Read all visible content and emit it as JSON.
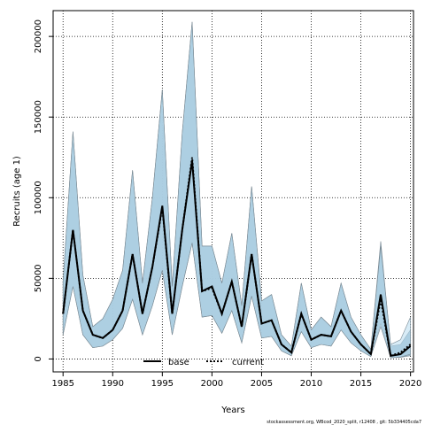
{
  "chart_data": {
    "type": "area",
    "title": "",
    "xlabel": "Years",
    "ylabel": "Recruits (age 1)",
    "xlim": [
      1984,
      2020.3
    ],
    "ylim": [
      -8000,
      216000
    ],
    "x_ticks": [
      1985,
      1990,
      1995,
      2000,
      2005,
      2010,
      2015,
      2020
    ],
    "y_ticks": [
      0,
      50000,
      100000,
      150000,
      200000
    ],
    "grid": true,
    "legend_position": "bottom-center",
    "footer": "stockassessment.org,  WBcod_2020_split,  r12408 ,  git: 5b334405cda7",
    "x": [
      1985,
      1986,
      1987,
      1988,
      1989,
      1990,
      1991,
      1992,
      1993,
      1994,
      1995,
      1996,
      1997,
      1998,
      1999,
      2000,
      2001,
      2002,
      2003,
      2004,
      2005,
      2006,
      2007,
      2008,
      2009,
      2010,
      2011,
      2012,
      2013,
      2014,
      2015,
      2016,
      2017,
      2018,
      2019,
      2020
    ],
    "series": [
      {
        "name": "base",
        "color": "#000000",
        "line_style": "solid",
        "values": [
          28000,
          80000,
          30000,
          15000,
          13000,
          18000,
          30000,
          65000,
          28000,
          57000,
          95000,
          28000,
          80000,
          123000,
          42000,
          45000,
          28000,
          48000,
          20000,
          65000,
          22000,
          24000,
          9000,
          4000,
          28000,
          12000,
          15000,
          14000,
          30000,
          17000,
          9000,
          3000,
          40000,
          2000,
          3000,
          8000
        ],
        "band_low": [
          15000,
          45000,
          15000,
          7000,
          8000,
          12000,
          19000,
          37000,
          15000,
          33000,
          55000,
          15000,
          45000,
          72000,
          26000,
          27000,
          16000,
          30000,
          10000,
          39000,
          13000,
          14000,
          5000,
          2000,
          17000,
          7000,
          9000,
          8000,
          18000,
          10000,
          5000,
          1500,
          22000,
          800,
          1000,
          2000
        ],
        "band_high": [
          48000,
          141000,
          52000,
          20000,
          25000,
          37000,
          55000,
          117000,
          47000,
          100000,
          167000,
          45000,
          140000,
          209000,
          70000,
          70000,
          47000,
          78000,
          33000,
          107000,
          36000,
          40000,
          15000,
          8000,
          47000,
          18000,
          26000,
          20000,
          47000,
          26000,
          15000,
          6000,
          73000,
          8000,
          9000,
          18000
        ],
        "band_color": "#9cbcce"
      },
      {
        "name": "current",
        "color": "#000000",
        "line_style": "dotted",
        "values": [
          28000,
          80000,
          30000,
          15000,
          13000,
          18000,
          30000,
          65000,
          28000,
          57000,
          94000,
          28000,
          80000,
          125000,
          42000,
          44000,
          28000,
          48000,
          20000,
          65000,
          22000,
          24000,
          9000,
          4000,
          28000,
          12000,
          15000,
          14000,
          30000,
          17000,
          9000,
          3000,
          37000,
          2000,
          4000,
          9000
        ],
        "band_low": [
          15000,
          45000,
          15000,
          7000,
          8000,
          12000,
          19000,
          37000,
          15000,
          33000,
          55000,
          15000,
          45000,
          72000,
          26000,
          27000,
          16000,
          30000,
          10000,
          39000,
          13000,
          14000,
          5000,
          2000,
          17000,
          7000,
          9000,
          8000,
          18000,
          10000,
          5000,
          1500,
          20000,
          800,
          1200,
          3000
        ],
        "band_high": [
          48000,
          141000,
          52000,
          20000,
          25000,
          37000,
          55000,
          117000,
          47000,
          100000,
          167000,
          45000,
          140000,
          209000,
          70000,
          70000,
          47000,
          78000,
          33000,
          107000,
          36000,
          40000,
          15000,
          8000,
          47000,
          18000,
          26000,
          20000,
          47000,
          26000,
          15000,
          6000,
          70000,
          9000,
          12000,
          26000
        ],
        "band_color": "#b8dcf0"
      }
    ]
  }
}
